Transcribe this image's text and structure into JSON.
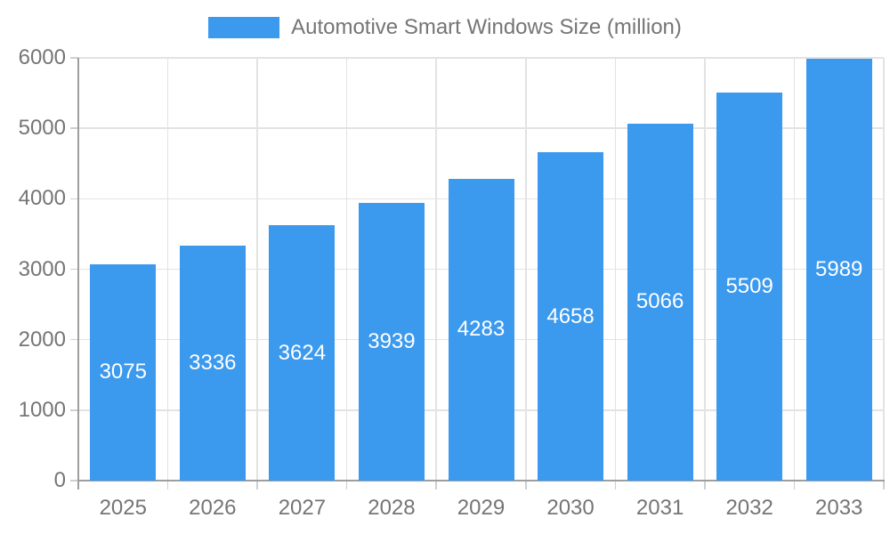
{
  "legend": {
    "label": "Automotive Smart Windows Size (million)",
    "swatch_color": "#3B99EE"
  },
  "chart_data": {
    "type": "bar",
    "title": "Automotive Smart Windows Size (million)",
    "categories": [
      "2025",
      "2026",
      "2027",
      "2028",
      "2029",
      "2030",
      "2031",
      "2032",
      "2033"
    ],
    "values": [
      3075,
      3336,
      3624,
      3939,
      4283,
      4658,
      5066,
      5509,
      5989
    ],
    "xlabel": "",
    "ylabel": "",
    "ylim": [
      0,
      6000
    ],
    "yticks": [
      0,
      1000,
      2000,
      3000,
      4000,
      5000,
      6000
    ],
    "grid": true,
    "legend_position": "top",
    "bar_color": "#3B99EE",
    "value_label_color": "#FFFFFF"
  },
  "colors": {
    "bar": "#3B99EE",
    "grid": "#E3E3E3",
    "axis": "#9E9E9E",
    "tick": "#CFCFCF",
    "text": "#757575",
    "background": "#FFFFFF"
  }
}
